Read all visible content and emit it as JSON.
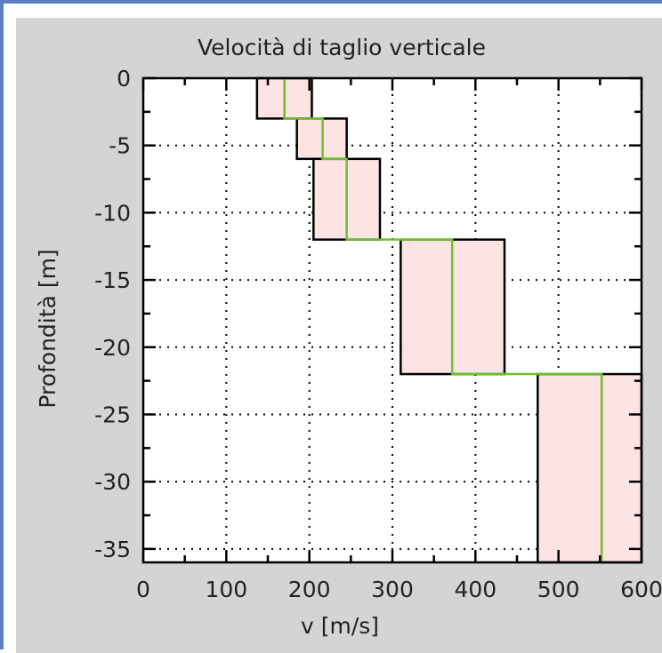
{
  "chart_data": {
    "type": "step",
    "title": "Velocità di taglio verticale",
    "xlabel": "v [m/s]",
    "ylabel": "Profondità [m]",
    "xlim": [
      0,
      600
    ],
    "ylim": [
      -36,
      0
    ],
    "xticks": [
      0,
      100,
      200,
      300,
      400,
      500,
      600
    ],
    "yticks": [
      0,
      -5,
      -10,
      -15,
      -20,
      -25,
      -30,
      -35
    ],
    "xtick_labels": [
      "0",
      "100",
      "200",
      "300",
      "400",
      "500",
      "600"
    ],
    "ytick_labels": [
      "0",
      "-5",
      "-10",
      "-15",
      "-20",
      "-25",
      "-30",
      "-35"
    ],
    "grid": true,
    "layers": [
      {
        "top": 0,
        "bottom": -3,
        "vmin": 137,
        "vmax": 203,
        "v": 170
      },
      {
        "top": -3,
        "bottom": -6,
        "vmin": 185,
        "vmax": 245,
        "v": 216
      },
      {
        "top": -6,
        "bottom": -12,
        "vmin": 205,
        "vmax": 285,
        "v": 245
      },
      {
        "top": -12,
        "bottom": -22,
        "vmin": 310,
        "vmax": 435,
        "v": 372
      },
      {
        "top": -22,
        "bottom": -36,
        "vmin": 475,
        "vmax": 600,
        "v": 552
      }
    ],
    "colors": {
      "band_fill": "#fde4e4",
      "band_edge": "#000000",
      "profile": "#6cc02e",
      "panel_bg": "#d4d4d4",
      "plot_bg": "#ffffff",
      "window_border": "#5b7fbf"
    }
  }
}
